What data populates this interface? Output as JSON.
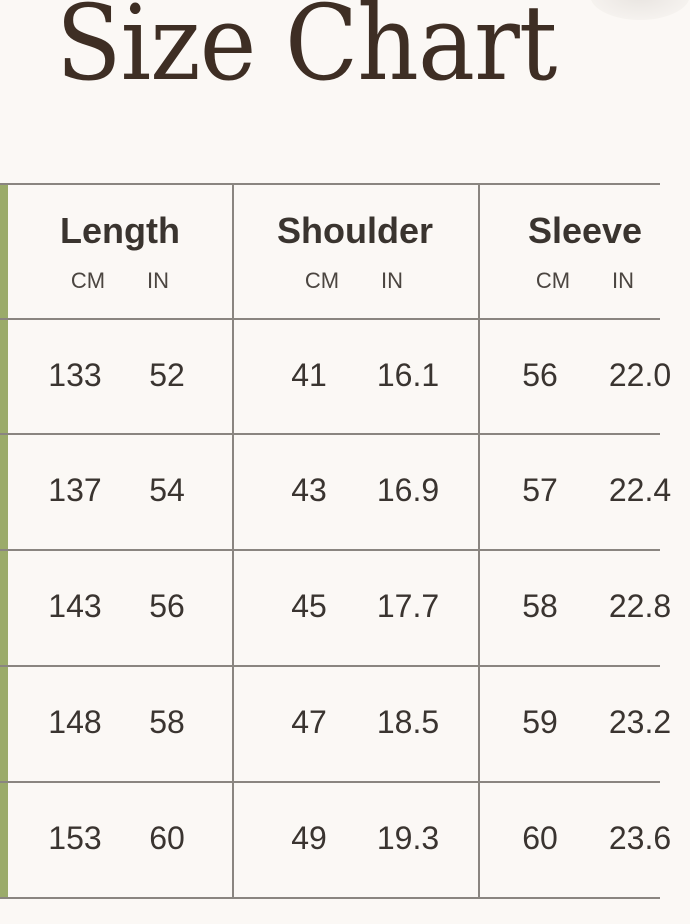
{
  "title": "Size Chart",
  "colors": {
    "accent_bar": "#9bab6a",
    "title": "#3e2e24"
  },
  "columns": [
    {
      "label": "Length",
      "units": [
        "CM",
        "IN"
      ]
    },
    {
      "label": "Shoulder",
      "units": [
        "CM",
        "IN"
      ]
    },
    {
      "label": "Sleeve",
      "units": [
        "CM",
        "IN"
      ]
    }
  ],
  "rows": [
    [
      "133",
      "52",
      "41",
      "16.1",
      "56",
      "22.0"
    ],
    [
      "137",
      "54",
      "43",
      "16.9",
      "57",
      "22.4"
    ],
    [
      "143",
      "56",
      "45",
      "17.7",
      "58",
      "22.8"
    ],
    [
      "148",
      "58",
      "47",
      "18.5",
      "59",
      "23.2"
    ],
    [
      "153",
      "60",
      "49",
      "19.3",
      "60",
      "23.6"
    ]
  ]
}
